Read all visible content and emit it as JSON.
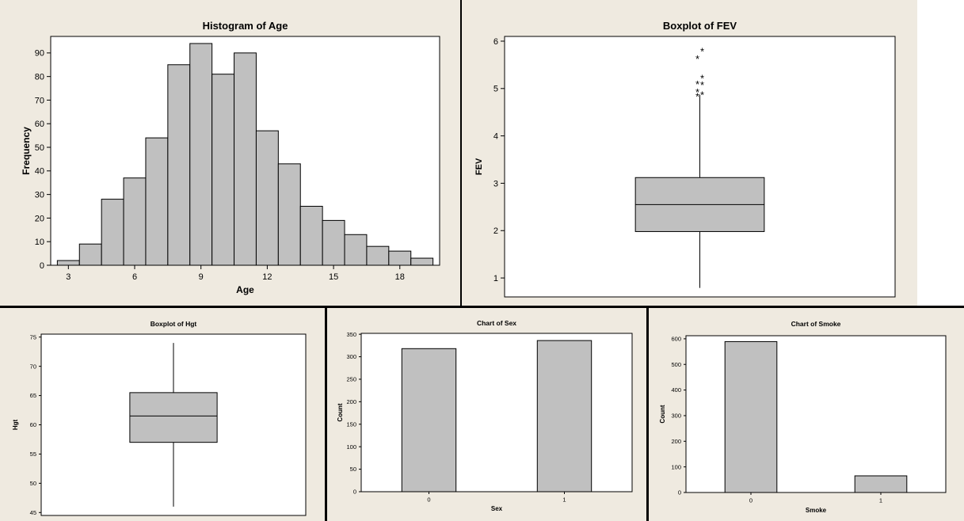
{
  "chart_data": [
    {
      "type": "bar",
      "title": "Histogram of Age",
      "xlabel": "Age",
      "ylabel": "Frequency",
      "bins": [
        [
          2.5,
          3.5
        ],
        [
          3.5,
          4.5
        ],
        [
          4.5,
          5.5
        ],
        [
          5.5,
          6.5
        ],
        [
          6.5,
          7.5
        ],
        [
          7.5,
          8.5
        ],
        [
          8.5,
          9.5
        ],
        [
          9.5,
          10.5
        ],
        [
          10.5,
          11.5
        ],
        [
          11.5,
          12.5
        ],
        [
          12.5,
          13.5
        ],
        [
          13.5,
          14.5
        ],
        [
          14.5,
          15.5
        ],
        [
          15.5,
          16.5
        ],
        [
          16.5,
          17.5
        ],
        [
          17.5,
          18.5
        ],
        [
          18.5,
          19.5
        ]
      ],
      "values": [
        2,
        9,
        28,
        37,
        54,
        85,
        94,
        81,
        90,
        57,
        43,
        25,
        19,
        13,
        8,
        6,
        3
      ],
      "xlim": [
        2.2,
        19.8
      ],
      "ylim": [
        0,
        97
      ],
      "xticks": [
        3,
        6,
        9,
        12,
        15,
        18
      ],
      "yticks": [
        0,
        10,
        20,
        30,
        40,
        50,
        60,
        70,
        80,
        90
      ]
    },
    {
      "type": "box",
      "title": "Boxplot of FEV",
      "ylabel": "FEV",
      "ylim": [
        0.6,
        6.1
      ],
      "yticks": [
        1,
        2,
        3,
        4,
        5,
        6
      ],
      "whisker_low": 0.79,
      "q1": 1.98,
      "median": 2.55,
      "q3": 3.12,
      "whisker_high": 4.87,
      "outliers": [
        4.84,
        4.87,
        4.93,
        5.08,
        5.1,
        5.22,
        5.63,
        5.79
      ],
      "outlier_symbol": "*"
    },
    {
      "type": "box",
      "title": "Boxplot of Hgt",
      "ylabel": "Hgt",
      "ylim": [
        44.5,
        75.5
      ],
      "yticks": [
        45,
        50,
        55,
        60,
        65,
        70,
        75
      ],
      "whisker_low": 46,
      "q1": 57,
      "median": 61.5,
      "q3": 65.5,
      "whisker_high": 74,
      "outliers": []
    },
    {
      "type": "bar",
      "title": "Chart of Sex",
      "xlabel": "Sex",
      "ylabel": "Count",
      "categories": [
        "0",
        "1"
      ],
      "values": [
        318,
        336
      ],
      "ylim": [
        0,
        352
      ],
      "yticks": [
        0,
        50,
        100,
        150,
        200,
        250,
        300,
        350
      ]
    },
    {
      "type": "bar",
      "title": "Chart of Smoke",
      "xlabel": "Smoke",
      "ylabel": "Count",
      "categories": [
        "0",
        "1"
      ],
      "values": [
        589,
        65
      ],
      "ylim": [
        0,
        612
      ],
      "yticks": [
        0,
        100,
        200,
        300,
        400,
        500,
        600
      ]
    }
  ]
}
